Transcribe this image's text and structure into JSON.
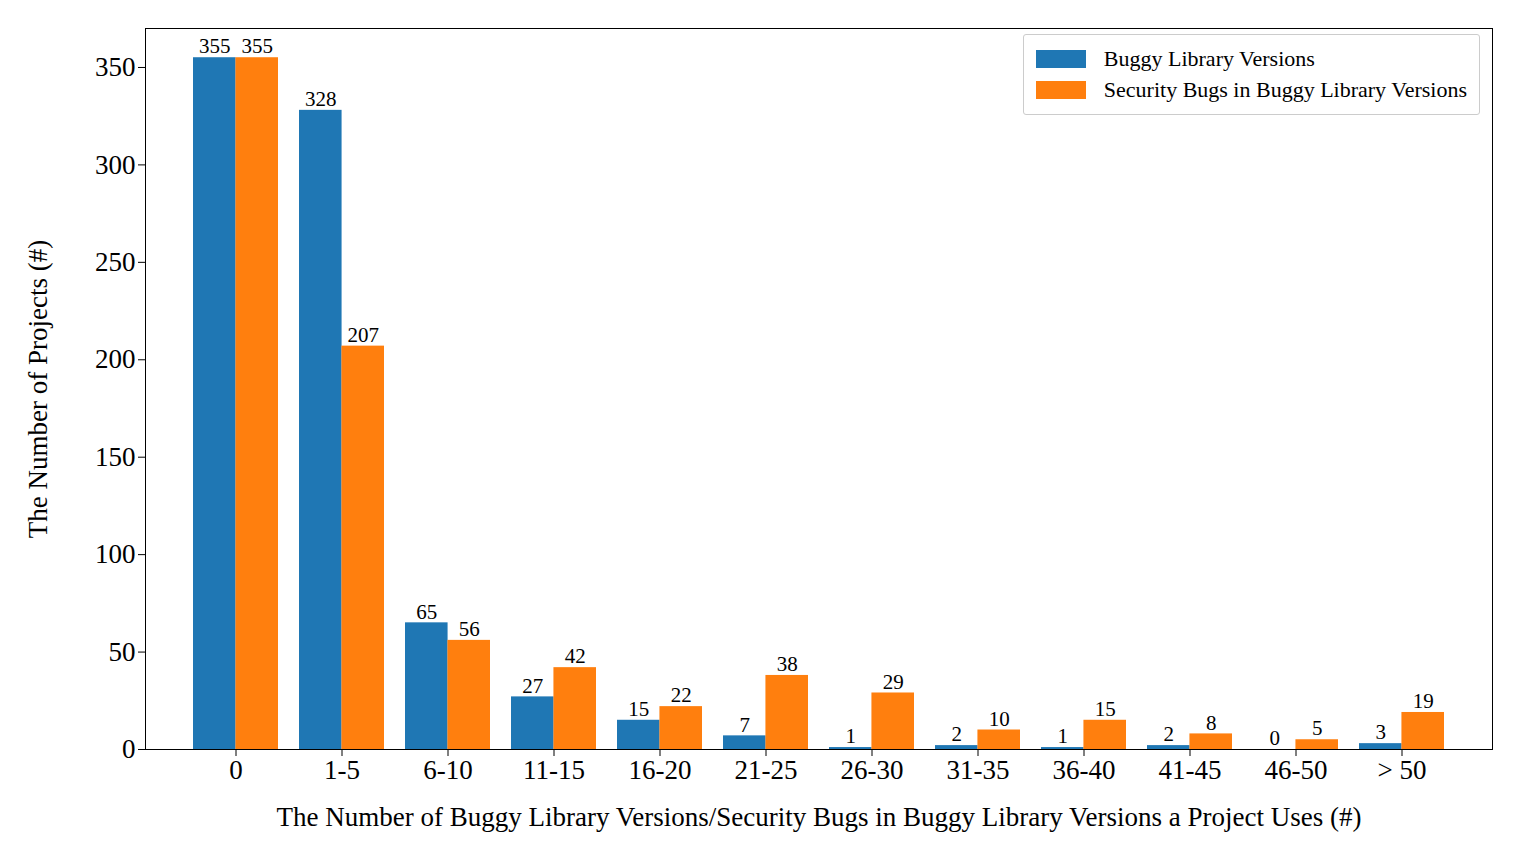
{
  "chart_data": {
    "type": "bar",
    "x_label": "The Number of Buggy Library Versions/Security Bugs in Buggy Library Versions a Project Uses (#)",
    "y_label": "The Number of Projects (#)",
    "categories": [
      "0",
      "1-5",
      "6-10",
      "11-15",
      "16-20",
      "21-25",
      "26-30",
      "31-35",
      "36-40",
      "41-45",
      "46-50",
      "> 50"
    ],
    "series": [
      {
        "name": "Buggy Library Versions",
        "color": "#1f77b4",
        "values": [
          355,
          328,
          65,
          27,
          15,
          7,
          1,
          2,
          1,
          2,
          0,
          3
        ]
      },
      {
        "name": "Security Bugs in Buggy Library Versions",
        "color": "#ff7f0e",
        "values": [
          355,
          207,
          56,
          42,
          22,
          38,
          29,
          10,
          15,
          8,
          5,
          19
        ]
      }
    ],
    "ylim": [
      0,
      370
    ],
    "yticks": [
      0,
      50,
      100,
      150,
      200,
      250,
      300,
      350
    ],
    "grid": false,
    "legend": "upper right",
    "data_labels": true
  }
}
